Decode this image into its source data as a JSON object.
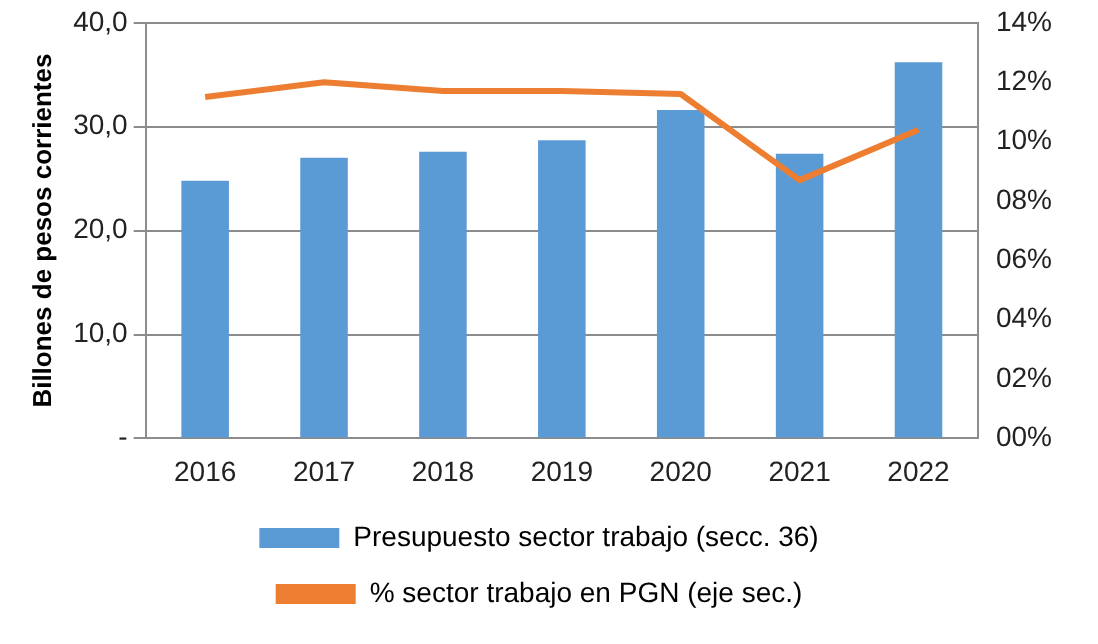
{
  "chart_data": {
    "type": "bar",
    "ylabel": "Billones de pesos corrientes",
    "categories": [
      "2016",
      "2017",
      "2018",
      "2019",
      "2020",
      "2021",
      "2022"
    ],
    "series": [
      {
        "name": "Presupuesto sector trabajo (secc. 36)",
        "color": "#5b9bd5",
        "values": [
          24.8,
          27.0,
          27.6,
          28.7,
          31.6,
          27.4,
          36.2
        ]
      },
      {
        "name": "% sector trabajo en PGN (eje sec.)",
        "type": "line",
        "axis": "y2",
        "color": "#ed7d31",
        "values": [
          11.5,
          12.0,
          11.7,
          11.7,
          11.6,
          8.7,
          10.4
        ]
      }
    ],
    "ylim": [
      0,
      40
    ],
    "yticks": [
      {
        "value": 0,
        "label": "-"
      },
      {
        "value": 10,
        "label": "10,0"
      },
      {
        "value": 20,
        "label": "20,0"
      },
      {
        "value": 30,
        "label": "30,0"
      },
      {
        "value": 40,
        "label": "40,0"
      }
    ],
    "y2lim": [
      0,
      14
    ],
    "y2ticks": [
      {
        "value": 0,
        "label": "00%"
      },
      {
        "value": 2,
        "label": "02%"
      },
      {
        "value": 4,
        "label": "04%"
      },
      {
        "value": 6,
        "label": "06%"
      },
      {
        "value": 8,
        "label": "08%"
      },
      {
        "value": 10,
        "label": "10%"
      },
      {
        "value": 12,
        "label": "12%"
      },
      {
        "value": 14,
        "label": "14%"
      }
    ],
    "grid": "y",
    "legend": "bottom",
    "marker": "none",
    "line_style": "solid"
  }
}
